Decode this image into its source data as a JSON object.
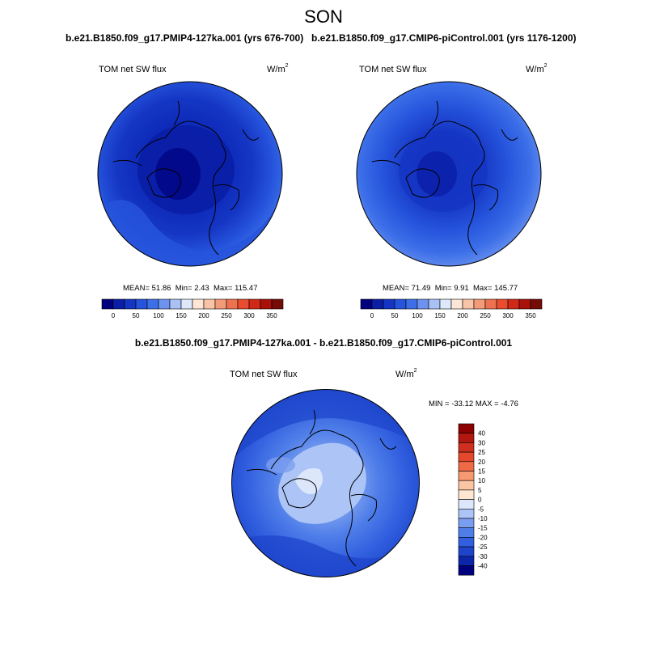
{
  "season": "SON",
  "left_panel": {
    "case_title": "b.e21.B1850.f09_g17.PMIP4-127ka.001 (yrs 676-700)",
    "variable": "TOM net SW flux",
    "units": "W/m",
    "units_exp": "2",
    "mean_label": "MEAN=",
    "mean": "51.86",
    "min_label": "Min=",
    "min": "2.43",
    "max_label": "Max=",
    "max": "115.47"
  },
  "right_panel": {
    "case_title": "b.e21.B1850.f09_g17.CMIP6-piControl.001 (yrs 1176-1200)",
    "variable": "TOM net SW flux",
    "units": "W/m",
    "units_exp": "2",
    "mean_label": "MEAN=",
    "mean": "71.49",
    "min_label": "Min=",
    "min": "9.91",
    "max_label": "Max=",
    "max": "145.77"
  },
  "diff_panel": {
    "title": "b.e21.B1850.f09_g17.PMIP4-127ka.001 - b.e21.B1850.f09_g17.CMIP6-piControl.001",
    "variable": "TOM net SW flux",
    "units": "W/m",
    "units_exp": "2",
    "minmax": "MIN = -33.12 MAX =  -4.76"
  },
  "abs_colorbar": {
    "colors": [
      "#00007f",
      "#0a1ea6",
      "#1536c4",
      "#2654dc",
      "#3c6fe8",
      "#6d93ef",
      "#a9c1f5",
      "#dde8fb",
      "#fde6d6",
      "#f9c3a7",
      "#f39b78",
      "#ee7150",
      "#e94c2f",
      "#d22817",
      "#a8120a",
      "#750a06"
    ],
    "tick_labels": [
      "0",
      "50",
      "100",
      "150",
      "200",
      "250",
      "300",
      "350"
    ]
  },
  "diff_colorbar": {
    "colors": [
      "#8b0000",
      "#b1170f",
      "#cf2f1e",
      "#e3482d",
      "#ef6b45",
      "#f79a71",
      "#fbc4a3",
      "#fde6d2",
      "#dce7fb",
      "#adc5f6",
      "#7a9eef",
      "#4f7ee9",
      "#315fdf",
      "#1d44cb",
      "#0d25a8",
      "#00007f"
    ],
    "tick_labels": [
      "40",
      "30",
      "25",
      "20",
      "15",
      "10",
      "5",
      "0",
      "-5",
      "-10",
      "-15",
      "-20",
      "-25",
      "-30",
      "-40"
    ]
  }
}
